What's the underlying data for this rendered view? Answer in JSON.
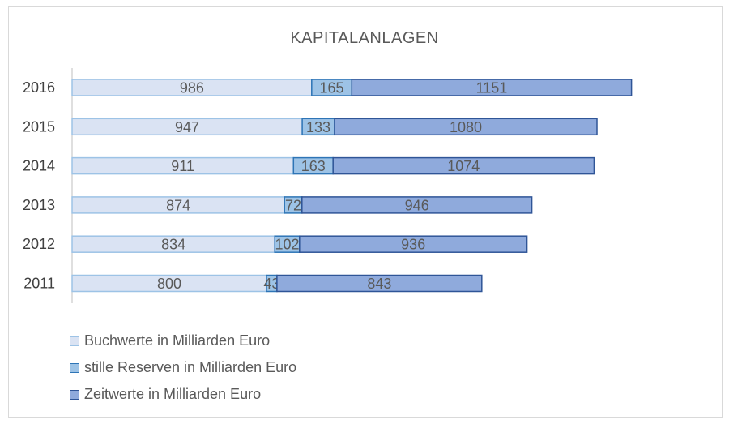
{
  "chart_data": {
    "type": "bar",
    "orientation": "horizontal",
    "stacked": true,
    "title": "KAPITALANLAGEN",
    "categories": [
      "2016",
      "2015",
      "2014",
      "2013",
      "2012",
      "2011"
    ],
    "series": [
      {
        "name": "Buchwerte in Milliarden Euro",
        "values": [
          986,
          947,
          911,
          874,
          834,
          800
        ],
        "color": "#dae3f3",
        "stroke": "#9dc3e6"
      },
      {
        "name": "stille Reserven in Milliarden Euro",
        "values": [
          165,
          133,
          163,
          72,
          102,
          43
        ],
        "color": "#9dc3e6",
        "stroke": "#2e75b6"
      },
      {
        "name": "Zeitwerte in Milliarden Euro",
        "values": [
          1151,
          1080,
          1074,
          946,
          936,
          843
        ],
        "color": "#8faadc",
        "stroke": "#2f5597"
      }
    ],
    "data_labels": true,
    "legend_position": "bottom-left",
    "grid": false,
    "xlim": [
      0,
      2700
    ]
  }
}
